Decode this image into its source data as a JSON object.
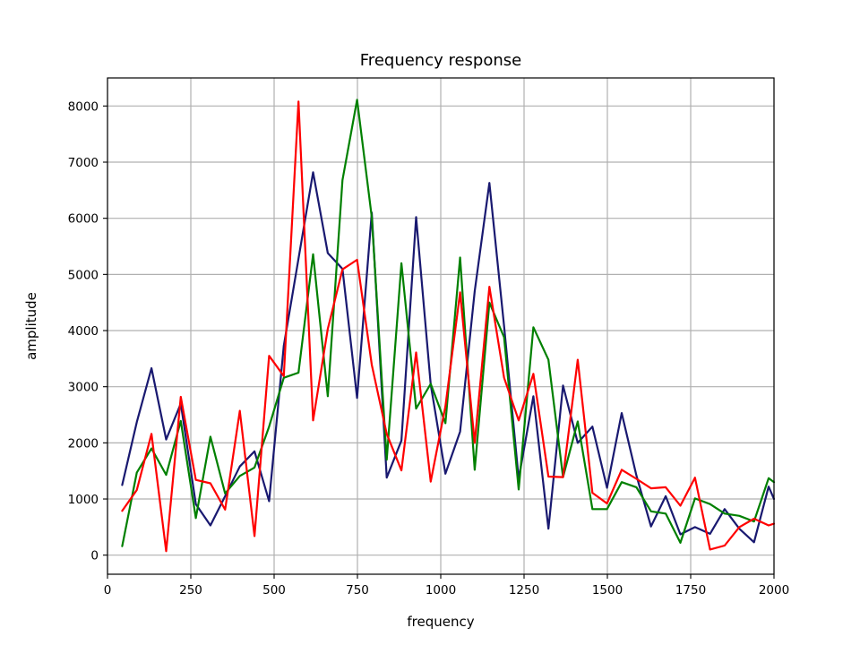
{
  "chart_data": {
    "type": "line",
    "title": "Frequency response",
    "xlabel": "frequency",
    "ylabel": "amplitude",
    "xlim": [
      0,
      2000
    ],
    "ylim": [
      -340,
      8500
    ],
    "xticks": [
      0,
      250,
      500,
      750,
      1000,
      1250,
      1500,
      1750,
      2000
    ],
    "yticks": [
      0,
      1000,
      2000,
      3000,
      4000,
      5000,
      6000,
      7000,
      8000
    ],
    "grid": true,
    "legend": "none",
    "x": [
      44,
      88,
      132,
      176,
      220,
      265,
      309,
      353,
      397,
      441,
      485,
      529,
      573,
      617,
      661,
      705,
      749,
      793,
      838,
      882,
      926,
      970,
      1014,
      1058,
      1102,
      1146,
      1190,
      1234,
      1278,
      1323,
      1367,
      1411,
      1455,
      1499,
      1543,
      1587,
      1631,
      1675,
      1719,
      1763,
      1808,
      1852,
      1896,
      1940,
      1984,
      2000
    ],
    "series": [
      {
        "color": "#191970",
        "values": [
          1250,
          2370,
          3330,
          2060,
          2700,
          910,
          530,
          1050,
          1580,
          1850,
          960,
          3730,
          5280,
          6820,
          5380,
          5100,
          2800,
          6100,
          1380,
          2040,
          6020,
          3040,
          1450,
          2200,
          4700,
          6630,
          4080,
          1360,
          2830,
          470,
          3020,
          2000,
          2290,
          1200,
          2530,
          1420,
          510,
          1050,
          370,
          500,
          380,
          820,
          470,
          230,
          1220,
          1000
        ]
      },
      {
        "color": "#008000",
        "values": [
          160,
          1470,
          1900,
          1430,
          2390,
          660,
          2110,
          1100,
          1410,
          1560,
          2290,
          3160,
          3250,
          5360,
          2830,
          6680,
          8110,
          6020,
          1700,
          5200,
          2610,
          3050,
          2350,
          5300,
          1520,
          4500,
          3880,
          1170,
          4060,
          3480,
          1390,
          2380,
          820,
          820,
          1300,
          1210,
          780,
          740,
          220,
          1010,
          910,
          740,
          700,
          600,
          1370,
          1300
        ]
      },
      {
        "color": "#ff0000",
        "values": [
          790,
          1160,
          2160,
          70,
          2820,
          1340,
          1280,
          810,
          2570,
          340,
          3550,
          3190,
          8080,
          2400,
          4030,
          5090,
          5260,
          3390,
          2160,
          1510,
          3610,
          1310,
          2650,
          4680,
          2000,
          4780,
          3160,
          2400,
          3230,
          1400,
          1390,
          3480,
          1110,
          920,
          1520,
          1360,
          1190,
          1210,
          880,
          1380,
          100,
          170,
          500,
          650,
          530,
          560
        ]
      }
    ]
  }
}
